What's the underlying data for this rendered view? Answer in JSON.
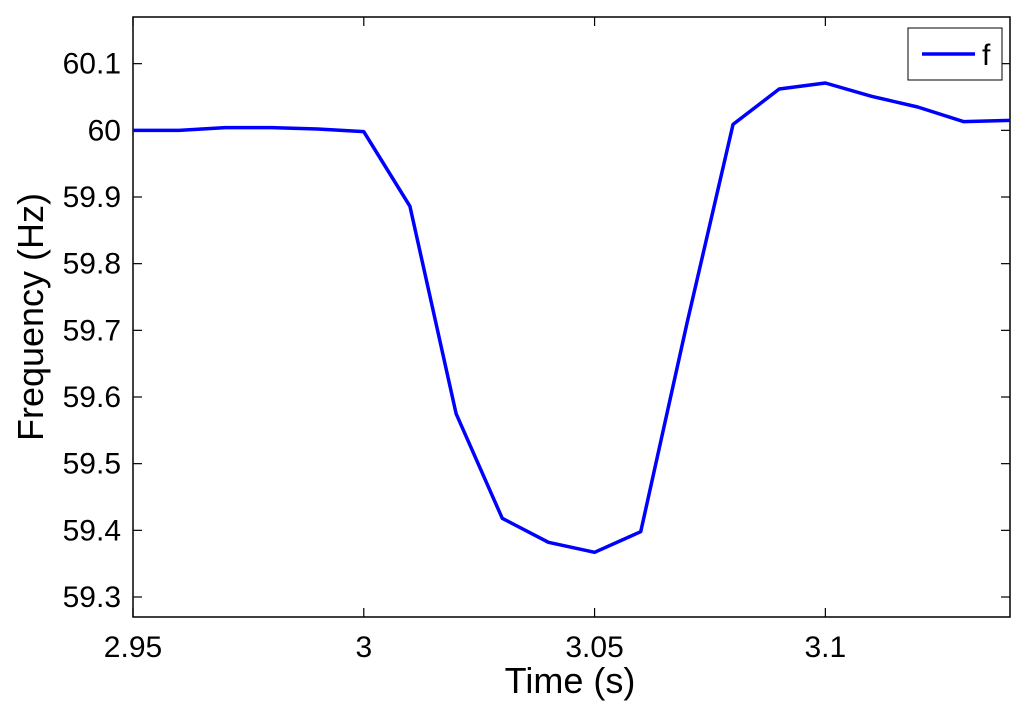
{
  "chart_data": {
    "type": "line",
    "title": "",
    "xlabel": "Time (s)",
    "ylabel": "Frequency (Hz)",
    "xlim": [
      2.95,
      3.14
    ],
    "ylim": [
      59.27,
      60.17
    ],
    "xticks": [
      2.95,
      3.0,
      3.05,
      3.1
    ],
    "xtick_labels": [
      "2.95",
      "3",
      "3.05",
      "3.1"
    ],
    "yticks": [
      59.3,
      59.4,
      59.5,
      59.6,
      59.7,
      59.8,
      59.9,
      60.0,
      60.1
    ],
    "ytick_labels": [
      "59.3",
      "59.4",
      "59.5",
      "59.6",
      "59.7",
      "59.8",
      "59.9",
      "60",
      "60.1"
    ],
    "grid": false,
    "legend_position": "top-right",
    "series": [
      {
        "name": "f",
        "color": "#0000ff",
        "x": [
          2.95,
          2.96,
          2.97,
          2.98,
          2.99,
          3.0,
          3.01,
          3.02,
          3.03,
          3.04,
          3.05,
          3.06,
          3.07,
          3.08,
          3.09,
          3.1,
          3.11,
          3.12,
          3.13,
          3.14
        ],
        "y": [
          60.0,
          60.0,
          60.004,
          60.004,
          60.002,
          59.998,
          59.886,
          59.575,
          59.418,
          59.382,
          59.367,
          59.398,
          59.71,
          60.009,
          60.062,
          60.071,
          60.051,
          60.035,
          60.013,
          60.015
        ]
      }
    ]
  }
}
